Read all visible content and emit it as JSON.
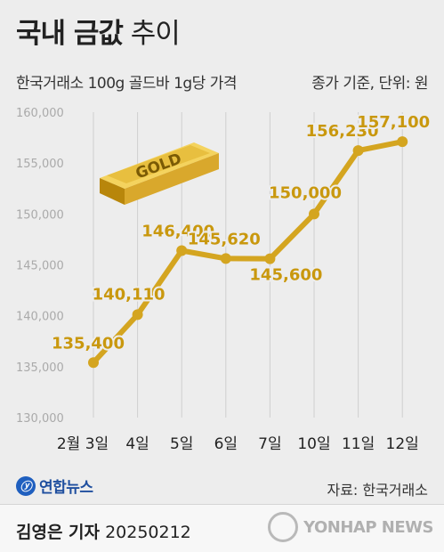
{
  "header": {
    "title_bold": "국내 금값",
    "title_light": "추이",
    "subtitle": "한국거래소 100g 골드바 1g당 가격",
    "unit": "종가 기준, 단위: 원"
  },
  "illustration": {
    "gold_bar_label": "GOLD"
  },
  "chart_data": {
    "type": "line",
    "categories": [
      "2월 3일",
      "4일",
      "5일",
      "6일",
      "7일",
      "10일",
      "11일",
      "12일"
    ],
    "values": [
      135400,
      140110,
      146400,
      145620,
      145600,
      150000,
      156230,
      157100
    ],
    "value_labels": [
      "135,400",
      "140,110",
      "146,400",
      "145,620",
      "145,600",
      "150,000",
      "156,230",
      "157,100"
    ],
    "yticks": [
      130000,
      135000,
      140000,
      145000,
      150000,
      155000,
      160000
    ],
    "ytick_labels": [
      "130,000",
      "135,000",
      "140,000",
      "145,000",
      "150,000",
      "155,000",
      "160,000"
    ],
    "ylim": [
      130000,
      160000
    ],
    "grid": "vertical",
    "colors": {
      "line": "#d4a520",
      "label": "#c9980e",
      "grid": "#cfcfcf",
      "axis_text": "#aaaaaa"
    }
  },
  "footer": {
    "logo_text": "연합뉴스",
    "source": "자료: 한국거래소",
    "reporter": "김영은 기자",
    "date": "20250212",
    "watermark": "YONHAP NEWS"
  }
}
